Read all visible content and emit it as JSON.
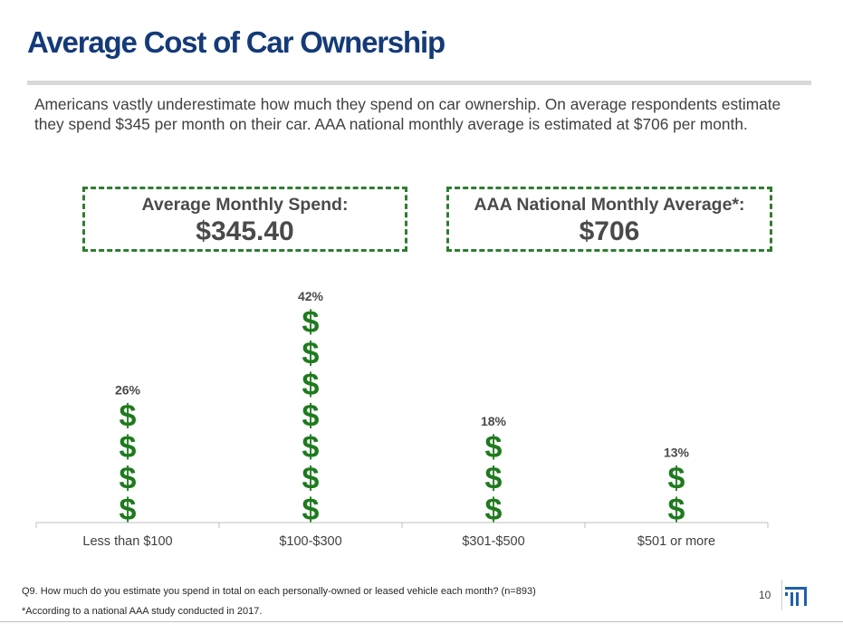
{
  "title": "Average Cost of Car Ownership",
  "subtitle": "Americans vastly underestimate how much they spend on car ownership. On average respondents estimate they spend $345 per month on their car. AAA national monthly average is estimated at $706 per month.",
  "callouts": [
    {
      "label": "Average Monthly Spend:",
      "value": "$345.40"
    },
    {
      "label": "AAA National  Monthly Average*:",
      "value": "$706"
    }
  ],
  "chart_data": {
    "type": "bar",
    "categories": [
      "Less than $100",
      "$100-$300",
      "$301-$500",
      "$501 or more"
    ],
    "values": [
      26,
      42,
      18,
      13
    ],
    "data_labels": [
      "26%",
      "42%",
      "18%",
      "13%"
    ],
    "icon_counts": [
      4,
      7,
      3,
      2
    ],
    "icon_glyph": "$",
    "unit": "%",
    "title": "",
    "xlabel": "",
    "ylabel": "",
    "ylim": [
      0,
      45
    ],
    "grid": false,
    "legend": "none",
    "colors": {
      "icon": "#1e7a1e",
      "label": "#4a4a4a",
      "axis": "#bfbfbf"
    }
  },
  "footnotes": [
    "Q9. How much do you estimate you spend in total on each personally-owned or leased vehicle each month? (n=893)",
    "*According to a national AAA study conducted in 2017."
  ],
  "page_number": "10",
  "logo_icon": "brand-logo-icon"
}
